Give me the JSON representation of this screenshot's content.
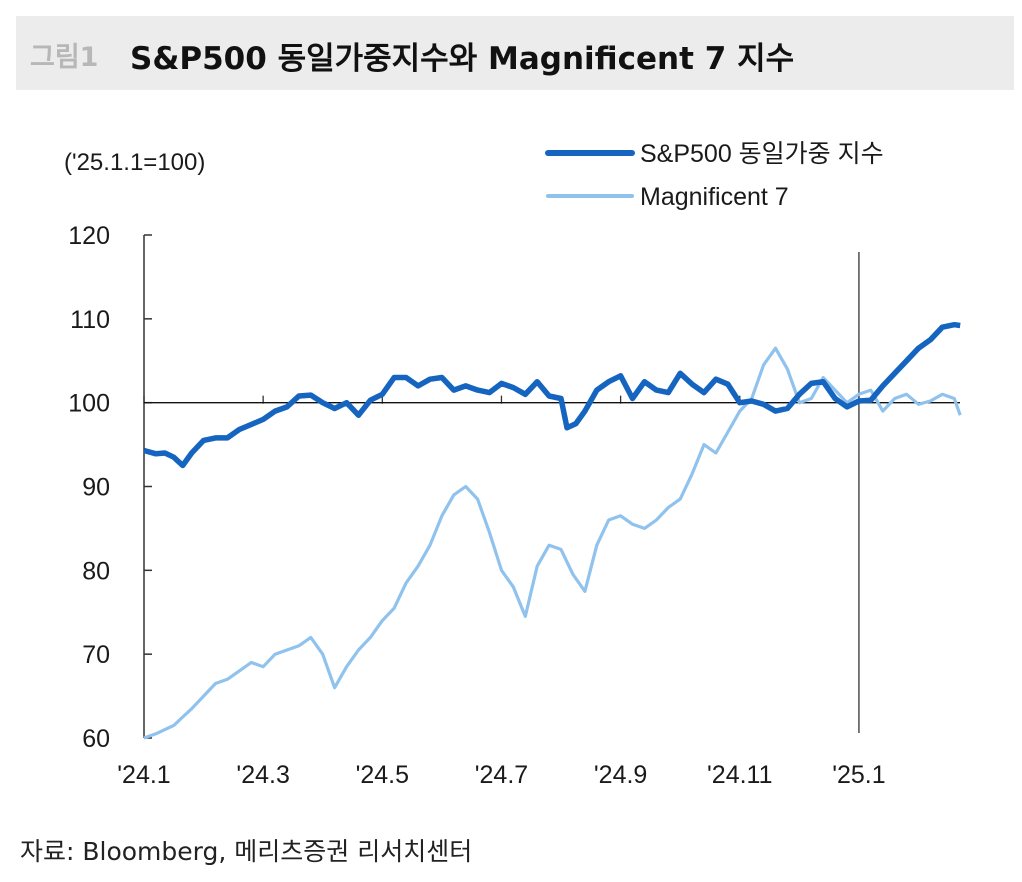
{
  "header": {
    "label": "그림1",
    "title": "S&P500 동일가중지수와 Magnificent 7 지수"
  },
  "source": "자료: Bloomberg, 메리츠증권 리서치센터",
  "colors": {
    "equal_weight": "#1565c0",
    "mag7": "#90c2ee"
  },
  "chart_data": {
    "type": "line",
    "unit_label": "('25.1.1=100)",
    "ylim": [
      60,
      120
    ],
    "yticks": [
      "60",
      "70",
      "80",
      "90",
      "100",
      "110",
      "120"
    ],
    "xlim": [
      0,
      14.2
    ],
    "xtick_labels": [
      "'24.1",
      "'24.3",
      "'24.5",
      "'24.7",
      "'24.9",
      "'24.11",
      "'25.1"
    ],
    "xtick_pos": [
      0,
      2,
      4,
      6,
      8,
      10,
      12
    ],
    "reference_line": {
      "y": 100
    },
    "vline": {
      "x": 12
    },
    "series": [
      {
        "name": "S&P500 동일가중 지수",
        "x": [
          0,
          0.2,
          0.35,
          0.5,
          0.65,
          0.8,
          1.0,
          1.2,
          1.4,
          1.6,
          1.8,
          2.0,
          2.2,
          2.4,
          2.6,
          2.8,
          3.0,
          3.2,
          3.4,
          3.6,
          3.8,
          4.0,
          4.2,
          4.4,
          4.6,
          4.8,
          5.0,
          5.2,
          5.4,
          5.6,
          5.8,
          6.0,
          6.2,
          6.4,
          6.6,
          6.8,
          7.0,
          7.1,
          7.25,
          7.4,
          7.6,
          7.8,
          8.0,
          8.2,
          8.4,
          8.6,
          8.8,
          9.0,
          9.2,
          9.4,
          9.6,
          9.8,
          10.0,
          10.2,
          10.4,
          10.6,
          10.8,
          11.0,
          11.2,
          11.4,
          11.6,
          11.8,
          12.0,
          12.2,
          12.4,
          12.6,
          12.8,
          13.0,
          13.2,
          13.4,
          13.6,
          13.7
        ],
        "values": [
          94.3,
          93.9,
          94.0,
          93.5,
          92.5,
          94.0,
          95.5,
          95.8,
          95.8,
          96.8,
          97.4,
          98.0,
          99.0,
          99.5,
          100.8,
          100.9,
          100.0,
          99.3,
          100.0,
          98.5,
          100.3,
          101.0,
          103.0,
          103.0,
          102.0,
          102.8,
          103.0,
          101.5,
          102.0,
          101.5,
          101.2,
          102.3,
          101.8,
          101.0,
          102.5,
          100.8,
          100.5,
          97.0,
          97.5,
          99.0,
          101.5,
          102.5,
          103.2,
          100.5,
          102.5,
          101.5,
          101.2,
          103.5,
          102.2,
          101.2,
          102.8,
          102.2,
          100.0,
          100.2,
          99.8,
          99.0,
          99.3,
          101.0,
          102.3,
          102.5,
          100.5,
          99.5,
          100.2,
          100.3,
          102.0,
          103.5,
          105.0,
          106.5,
          107.5,
          109.0,
          109.3,
          109.2
        ]
      },
      {
        "name": "Magnificent 7",
        "x": [
          0,
          0.2,
          0.35,
          0.5,
          0.65,
          0.8,
          1.0,
          1.2,
          1.4,
          1.6,
          1.8,
          2.0,
          2.2,
          2.4,
          2.6,
          2.8,
          3.0,
          3.2,
          3.4,
          3.6,
          3.8,
          4.0,
          4.2,
          4.4,
          4.6,
          4.8,
          5.0,
          5.2,
          5.4,
          5.6,
          5.8,
          6.0,
          6.2,
          6.4,
          6.6,
          6.8,
          7.0,
          7.2,
          7.4,
          7.6,
          7.8,
          8.0,
          8.2,
          8.4,
          8.6,
          8.8,
          9.0,
          9.2,
          9.4,
          9.6,
          9.8,
          10.0,
          10.2,
          10.4,
          10.6,
          10.8,
          11.0,
          11.2,
          11.4,
          11.6,
          11.8,
          12.0,
          12.2,
          12.4,
          12.6,
          12.8,
          13.0,
          13.2,
          13.4,
          13.6,
          13.7
        ],
        "values": [
          60.0,
          60.5,
          61.0,
          61.5,
          62.5,
          63.5,
          65.0,
          66.5,
          67.0,
          68.0,
          69.0,
          68.5,
          70.0,
          70.5,
          71.0,
          72.0,
          70.0,
          66.0,
          68.5,
          70.5,
          72.0,
          74.0,
          75.5,
          78.5,
          80.5,
          83.0,
          86.5,
          89.0,
          90.0,
          88.5,
          84.5,
          80.0,
          78.0,
          74.5,
          80.5,
          83.0,
          82.5,
          79.5,
          77.5,
          83.0,
          86.0,
          86.5,
          85.5,
          85.0,
          86.0,
          87.5,
          88.5,
          91.5,
          95.0,
          94.0,
          96.5,
          99.0,
          100.5,
          104.5,
          106.5,
          104.0,
          100.0,
          100.5,
          103.0,
          101.5,
          100.0,
          101.0,
          101.5,
          99.0,
          100.5,
          101.0,
          99.8,
          100.2,
          101.0,
          100.5,
          98.5
        ]
      }
    ]
  }
}
